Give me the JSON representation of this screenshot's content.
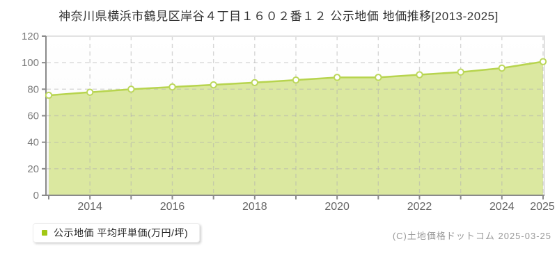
{
  "title": "神奈川県横浜市鶴見区岸谷４丁目１６０２番１２ 公示地価 地価推移[2013-2025]",
  "legend": {
    "marker_color": "#a2c716",
    "label": "公示地価 平均坪単価(万円/坪)"
  },
  "footer": {
    "copyright": "(C)土地価格ドットコム 2025-03-25"
  },
  "chart_data": {
    "type": "area",
    "title": "神奈川県横浜市鶴見区岸谷４丁目１６０２番１２ 公示地価 地価推移[2013-2025]",
    "x": [
      2013,
      2014,
      2015,
      2016,
      2017,
      2018,
      2019,
      2020,
      2021,
      2022,
      2023,
      2024,
      2025
    ],
    "series": [
      {
        "name": "公示地価 平均坪単価(万円/坪)",
        "values": [
          75.4,
          77.7,
          80.0,
          81.7,
          83.3,
          85.0,
          86.9,
          88.9,
          88.9,
          90.9,
          92.9,
          95.9,
          100.8
        ]
      }
    ],
    "xlabel": "",
    "ylabel": "平均坪単価(万円/坪)",
    "ylim": [
      0,
      120
    ],
    "yticks": [
      0,
      20,
      40,
      60,
      80,
      100,
      120
    ],
    "xtick_labels": [
      "2014",
      "2016",
      "2018",
      "2020",
      "2022",
      "2024",
      "2025"
    ],
    "grid": "dashed, horizontal at every 20 and vertical at every year",
    "legend_position": "bottom-left",
    "colors": {
      "line": "#b7d44e",
      "fill": "#d9e79b",
      "point_fill": "#ffffff",
      "point_stroke": "#bcd75c",
      "grid": "#b0b0b0",
      "axis": "#8a8a8a",
      "plot_border": "#e2e2e2",
      "ytick_text": "#7d7d7d",
      "xtick_text": "#666666"
    }
  }
}
